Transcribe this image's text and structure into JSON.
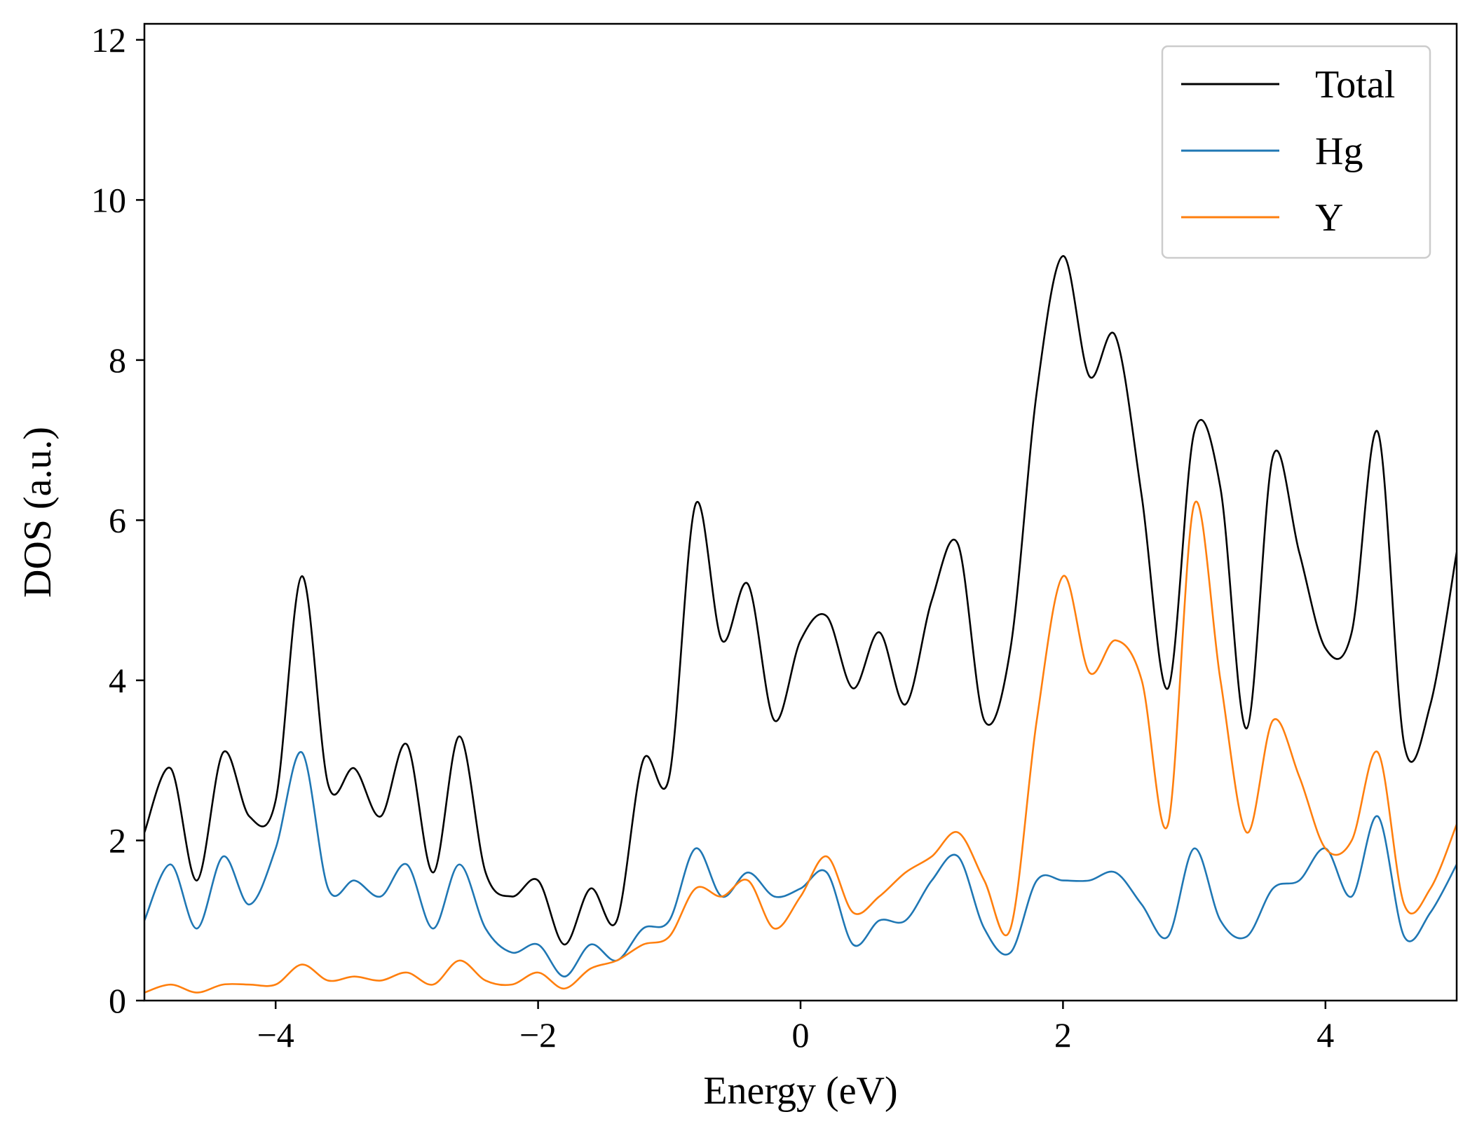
{
  "chart_data": {
    "type": "line",
    "title": "",
    "xlabel": "Energy (eV)",
    "ylabel": "DOS (a.u.)",
    "xlim": [
      -5,
      5
    ],
    "ylim": [
      0,
      12.2
    ],
    "xticks": [
      -4,
      -2,
      0,
      2,
      4
    ],
    "xtick_labels": [
      "−4",
      "−2",
      "0",
      "2",
      "4"
    ],
    "yticks": [
      0,
      2,
      4,
      6,
      8,
      10,
      12
    ],
    "ytick_labels": [
      "0",
      "2",
      "4",
      "6",
      "8",
      "10",
      "12"
    ],
    "grid": false,
    "legend_position": "top-right",
    "x": [
      -5.0,
      -4.8,
      -4.6,
      -4.4,
      -4.2,
      -4.0,
      -3.8,
      -3.6,
      -3.4,
      -3.2,
      -3.0,
      -2.8,
      -2.6,
      -2.4,
      -2.2,
      -2.0,
      -1.8,
      -1.6,
      -1.4,
      -1.2,
      -1.0,
      -0.8,
      -0.6,
      -0.4,
      -0.2,
      0.0,
      0.2,
      0.4,
      0.6,
      0.8,
      1.0,
      1.2,
      1.4,
      1.6,
      1.8,
      2.0,
      2.2,
      2.4,
      2.6,
      2.8,
      3.0,
      3.2,
      3.4,
      3.6,
      3.8,
      4.0,
      4.2,
      4.4,
      4.6,
      4.8,
      5.0
    ],
    "series": [
      {
        "name": "Total",
        "color": "#000000",
        "values": [
          2.1,
          2.9,
          1.5,
          3.1,
          2.3,
          2.5,
          5.3,
          2.7,
          2.9,
          2.3,
          3.2,
          1.6,
          3.3,
          1.6,
          1.3,
          1.5,
          0.7,
          1.4,
          1.0,
          3.0,
          2.8,
          6.2,
          4.5,
          5.2,
          3.5,
          4.5,
          4.8,
          3.9,
          4.6,
          3.7,
          5.0,
          5.7,
          3.5,
          4.4,
          7.6,
          9.3,
          7.8,
          8.3,
          6.3,
          3.9,
          7.1,
          6.4,
          3.4,
          6.8,
          5.6,
          4.4,
          4.6,
          7.1,
          3.2,
          3.7,
          5.6
        ]
      },
      {
        "name": "Hg",
        "color": "#1f77b4",
        "values": [
          1.0,
          1.7,
          0.9,
          1.8,
          1.2,
          1.9,
          3.1,
          1.4,
          1.5,
          1.3,
          1.7,
          0.9,
          1.7,
          0.9,
          0.6,
          0.7,
          0.3,
          0.7,
          0.5,
          0.9,
          1.0,
          1.9,
          1.3,
          1.6,
          1.3,
          1.4,
          1.6,
          0.7,
          1.0,
          1.0,
          1.5,
          1.8,
          0.9,
          0.6,
          1.5,
          1.5,
          1.5,
          1.6,
          1.2,
          0.8,
          1.9,
          1.0,
          0.8,
          1.4,
          1.5,
          1.9,
          1.3,
          2.3,
          0.8,
          1.1,
          1.7
        ]
      },
      {
        "name": "Y",
        "color": "#ff7f0e",
        "values": [
          0.1,
          0.2,
          0.1,
          0.2,
          0.2,
          0.2,
          0.45,
          0.25,
          0.3,
          0.25,
          0.35,
          0.2,
          0.5,
          0.25,
          0.2,
          0.35,
          0.15,
          0.4,
          0.5,
          0.7,
          0.8,
          1.4,
          1.3,
          1.5,
          0.9,
          1.3,
          1.8,
          1.1,
          1.3,
          1.6,
          1.8,
          2.1,
          1.5,
          0.9,
          3.5,
          5.3,
          4.1,
          4.5,
          4.0,
          2.2,
          6.2,
          4.0,
          2.1,
          3.5,
          2.8,
          1.9,
          2.0,
          3.1,
          1.2,
          1.4,
          2.2
        ]
      }
    ]
  }
}
